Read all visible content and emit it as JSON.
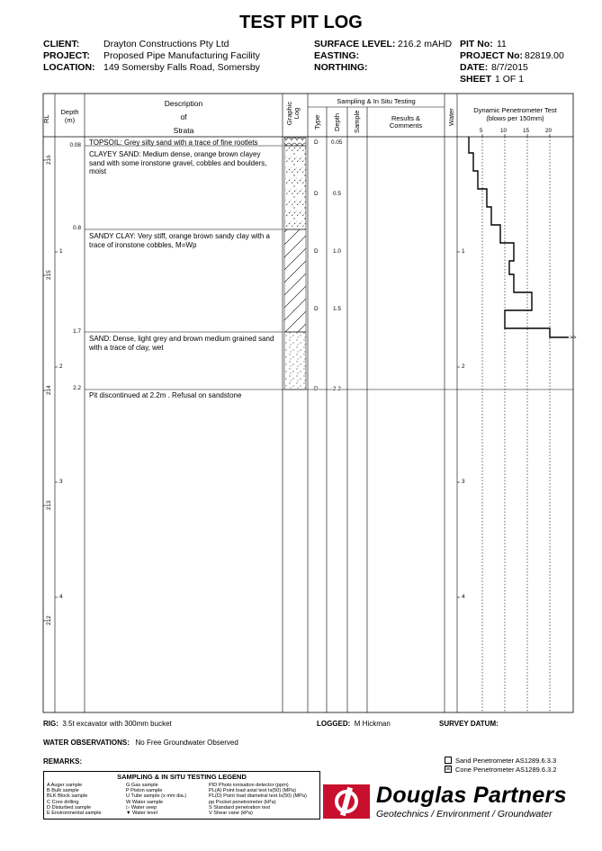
{
  "title": "TEST PIT LOG",
  "header": {
    "client_label": "CLIENT:",
    "client": "Drayton Constructions Pty Ltd",
    "project_label": "PROJECT:",
    "project": "Proposed Pipe Manufacturing Facility",
    "location_label": "LOCATION:",
    "location": "149 Somersby Falls Road, Somersby",
    "surface_label": "SURFACE LEVEL:",
    "surface": "216.2 mAHD",
    "easting_label": "EASTING:",
    "easting": "",
    "northing_label": "NORTHING:",
    "northing": "",
    "pit_label": "PIT No:",
    "pit": "11",
    "project_no_label": "PROJECT No:",
    "project_no": "82819.00",
    "date_label": "DATE:",
    "date": "8/7/2015",
    "sheet_label": "SHEET",
    "sheet": "1  OF  1"
  },
  "columns": {
    "rl": "RL",
    "depth": "Depth",
    "depth_unit": "(m)",
    "desc1": "Description",
    "desc2": "of",
    "desc3": "Strata",
    "graphic": "Graphic Log",
    "sampling": "Sampling & In Situ Testing",
    "type": "Type",
    "sdepth": "Depth",
    "sample": "Sample",
    "results1": "Results &",
    "results2": "Comments",
    "water": "Water",
    "dcp1": "Dynamic Penetrometer Test",
    "dcp2": "(blows per 150mm)"
  },
  "dcp_ticks": [
    "5",
    "10",
    "15",
    "20"
  ],
  "depth_ticks": [
    "1",
    "2",
    "3",
    "4"
  ],
  "rl_ticks": [
    "216",
    "215",
    "214",
    "213",
    "212"
  ],
  "strata": [
    {
      "depth": "0.08",
      "text": "TOPSOIL:  Grey silty sand with a trace of fine rootlets"
    },
    {
      "depth": "",
      "text": "CLAYEY SAND:  Medium dense, orange brown clayey sand with some ironstone gravel, cobbles and boulders, moist"
    },
    {
      "depth": "0.8",
      "text": "SANDY CLAY:  Very stiff, orange brown sandy clay with a trace of ironstone cobbles, M=Wp"
    },
    {
      "depth": "1.7",
      "text": "SAND:  Dense, light grey and brown medium grained sand with a trace of clay, wet"
    },
    {
      "depth": "2.2",
      "text": "Pit discontinued at 2.2m . Refusal on sandstone"
    }
  ],
  "samples": [
    {
      "type": "D",
      "depth": "0.05"
    },
    {
      "type": "D",
      "depth": "0.5"
    },
    {
      "type": "D",
      "depth": "1.0"
    },
    {
      "type": "D",
      "depth": "1.5"
    },
    {
      "type": "D",
      "depth": "2.2"
    }
  ],
  "dcp_refusal": ">>",
  "footer": {
    "rig_label": "RIG:",
    "rig": "3.5t excavator with 300mm bucket",
    "logged_label": "LOGGED:",
    "logged": "M Hickman",
    "survey_label": "SURVEY DATUM:",
    "water_label": "WATER OBSERVATIONS:",
    "water": "No Free Groundwater Observed",
    "remarks_label": "REMARKS:",
    "sand_pen": "Sand Penetrometer  AS1289.6.3.3",
    "cone_pen": "Cone Penetrometer  AS1289.6.3.2",
    "cone_mark": "☒"
  },
  "legend": {
    "title": "SAMPLING & IN SITU TESTING LEGEND",
    "col1": [
      "A    Auger sample",
      "B    Bulk sample",
      "BLK  Block sample",
      "C    Core drilling",
      "D    Disturbed sample",
      "E    Environmental sample"
    ],
    "col2": [
      "G    Gas sample",
      "P    Piston sample",
      "U    Tube sample (x mm dia.)",
      "W    Water sample",
      "▷    Water seep",
      "▼    Water level"
    ],
    "col3": [
      "PID    Photo ionisation detector (ppm)",
      "PL(A)  Point load axial test Is(50) (MPa)",
      "PL(D)  Point load diametral test Is(50) (MPa)",
      "pp     Pocket penetrometer (kPa)",
      "S      Standard penetration test",
      "V      Shear vane (kPa)"
    ]
  },
  "brand": {
    "name": "Douglas Partners",
    "tagline": "Geotechnics  /  Environment  /  Groundwater",
    "color": "#c8102e"
  }
}
